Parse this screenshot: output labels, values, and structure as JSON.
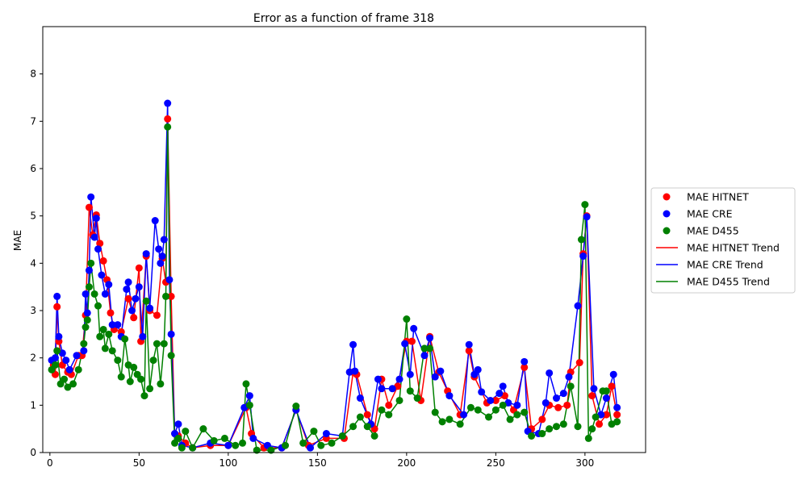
{
  "chart_data": {
    "type": "line",
    "title": "Error as a function of frame 318",
    "xlabel": "",
    "ylabel": "MAE",
    "xlim": [
      -4,
      334
    ],
    "ylim": [
      0,
      9
    ],
    "x_ticks": [
      0,
      50,
      100,
      150,
      200,
      250,
      300
    ],
    "y_ticks": [
      0,
      1,
      2,
      3,
      4,
      5,
      6,
      7,
      8
    ],
    "grid": false,
    "legend_placement": "outside-right",
    "legend": [
      {
        "label": "MAE HITNET",
        "kind": "marker",
        "color": "#ff0000"
      },
      {
        "label": "MAE CRE",
        "kind": "marker",
        "color": "#0000ff"
      },
      {
        "label": "MAE D455",
        "kind": "marker",
        "color": "#008000"
      },
      {
        "label": "MAE HITNET Trend",
        "kind": "line",
        "color": "#ff0000"
      },
      {
        "label": "MAE CRE Trend",
        "kind": "line",
        "color": "#0000ff"
      },
      {
        "label": "MAE D455 Trend",
        "kind": "line",
        "color": "#008000"
      }
    ],
    "series": [
      {
        "name": "MAE HITNET",
        "color": "#ff0000",
        "points": [
          [
            2,
            1.85
          ],
          [
            3,
            1.65
          ],
          [
            4,
            3.08
          ],
          [
            5,
            2.35
          ],
          [
            7,
            1.85
          ],
          [
            10,
            1.7
          ],
          [
            12,
            1.65
          ],
          [
            16,
            2.05
          ],
          [
            18,
            2.05
          ],
          [
            20,
            2.9
          ],
          [
            22,
            5.18
          ],
          [
            24,
            4.6
          ],
          [
            26,
            5.02
          ],
          [
            28,
            4.42
          ],
          [
            30,
            4.05
          ],
          [
            32,
            3.65
          ],
          [
            34,
            2.95
          ],
          [
            36,
            2.6
          ],
          [
            40,
            2.55
          ],
          [
            44,
            3.25
          ],
          [
            47,
            2.85
          ],
          [
            50,
            3.9
          ],
          [
            51,
            2.35
          ],
          [
            54,
            4.15
          ],
          [
            56,
            3.0
          ],
          [
            60,
            2.9
          ],
          [
            63,
            4.1
          ],
          [
            65,
            3.6
          ],
          [
            66,
            7.05
          ],
          [
            68,
            3.3
          ],
          [
            70,
            0.4
          ],
          [
            72,
            0.35
          ],
          [
            76,
            0.2
          ],
          [
            80,
            0.1
          ],
          [
            90,
            0.15
          ],
          [
            100,
            0.15
          ],
          [
            110,
            0.95
          ],
          [
            113,
            0.4
          ],
          [
            120,
            0.1
          ],
          [
            130,
            0.1
          ],
          [
            138,
            0.9
          ],
          [
            145,
            0.15
          ],
          [
            155,
            0.3
          ],
          [
            165,
            0.3
          ],
          [
            170,
            1.7
          ],
          [
            172,
            1.65
          ],
          [
            178,
            0.8
          ],
          [
            182,
            0.5
          ],
          [
            186,
            1.55
          ],
          [
            190,
            1.0
          ],
          [
            195,
            1.4
          ],
          [
            200,
            2.35
          ],
          [
            203,
            2.35
          ],
          [
            208,
            1.1
          ],
          [
            213,
            2.45
          ],
          [
            218,
            1.7
          ],
          [
            223,
            1.3
          ],
          [
            230,
            0.8
          ],
          [
            235,
            2.15
          ],
          [
            238,
            1.6
          ],
          [
            245,
            1.05
          ],
          [
            250,
            1.1
          ],
          [
            255,
            1.2
          ],
          [
            260,
            0.9
          ],
          [
            266,
            1.8
          ],
          [
            270,
            0.5
          ],
          [
            276,
            0.7
          ],
          [
            280,
            1.0
          ],
          [
            285,
            0.95
          ],
          [
            290,
            1.0
          ],
          [
            292,
            1.7
          ],
          [
            297,
            1.9
          ],
          [
            299,
            4.2
          ],
          [
            301,
            5.0
          ],
          [
            304,
            1.2
          ],
          [
            308,
            0.6
          ],
          [
            312,
            0.8
          ],
          [
            315,
            1.4
          ],
          [
            318,
            0.8
          ]
        ]
      },
      {
        "name": "MAE CRE",
        "color": "#0000ff",
        "points": [
          [
            1,
            1.95
          ],
          [
            3,
            2.0
          ],
          [
            4,
            3.3
          ],
          [
            5,
            2.45
          ],
          [
            7,
            2.1
          ],
          [
            9,
            1.95
          ],
          [
            11,
            1.75
          ],
          [
            15,
            2.05
          ],
          [
            19,
            2.15
          ],
          [
            20,
            3.35
          ],
          [
            21,
            2.95
          ],
          [
            22,
            3.85
          ],
          [
            23,
            5.4
          ],
          [
            25,
            4.55
          ],
          [
            26,
            4.95
          ],
          [
            27,
            4.3
          ],
          [
            29,
            3.75
          ],
          [
            31,
            3.35
          ],
          [
            33,
            3.55
          ],
          [
            35,
            2.7
          ],
          [
            38,
            2.7
          ],
          [
            40,
            2.45
          ],
          [
            43,
            3.45
          ],
          [
            44,
            3.6
          ],
          [
            46,
            3.0
          ],
          [
            48,
            3.25
          ],
          [
            50,
            3.5
          ],
          [
            52,
            2.45
          ],
          [
            54,
            4.2
          ],
          [
            56,
            3.05
          ],
          [
            59,
            4.9
          ],
          [
            61,
            4.3
          ],
          [
            62,
            4.0
          ],
          [
            63,
            4.15
          ],
          [
            64,
            4.5
          ],
          [
            66,
            7.38
          ],
          [
            67,
            3.65
          ],
          [
            68,
            2.5
          ],
          [
            70,
            0.4
          ],
          [
            72,
            0.6
          ],
          [
            74,
            0.15
          ],
          [
            80,
            0.1
          ],
          [
            90,
            0.2
          ],
          [
            100,
            0.15
          ],
          [
            109,
            0.95
          ],
          [
            112,
            1.2
          ],
          [
            114,
            0.3
          ],
          [
            122,
            0.15
          ],
          [
            130,
            0.1
          ],
          [
            138,
            0.9
          ],
          [
            146,
            0.1
          ],
          [
            155,
            0.4
          ],
          [
            164,
            0.35
          ],
          [
            168,
            1.7
          ],
          [
            170,
            2.28
          ],
          [
            171,
            1.72
          ],
          [
            174,
            1.15
          ],
          [
            180,
            0.6
          ],
          [
            184,
            1.55
          ],
          [
            186,
            1.35
          ],
          [
            192,
            1.35
          ],
          [
            196,
            1.55
          ],
          [
            199,
            2.3
          ],
          [
            202,
            1.65
          ],
          [
            204,
            2.62
          ],
          [
            210,
            2.05
          ],
          [
            213,
            2.42
          ],
          [
            216,
            1.6
          ],
          [
            219,
            1.72
          ],
          [
            224,
            1.2
          ],
          [
            232,
            0.8
          ],
          [
            235,
            2.28
          ],
          [
            238,
            1.65
          ],
          [
            240,
            1.75
          ],
          [
            242,
            1.28
          ],
          [
            247,
            1.1
          ],
          [
            252,
            1.25
          ],
          [
            254,
            1.4
          ],
          [
            257,
            1.05
          ],
          [
            262,
            1.0
          ],
          [
            266,
            1.92
          ],
          [
            268,
            0.45
          ],
          [
            274,
            0.4
          ],
          [
            278,
            1.05
          ],
          [
            280,
            1.68
          ],
          [
            284,
            1.15
          ],
          [
            288,
            1.25
          ],
          [
            291,
            1.6
          ],
          [
            296,
            3.1
          ],
          [
            299,
            4.15
          ],
          [
            301,
            4.98
          ],
          [
            305,
            1.35
          ],
          [
            309,
            0.8
          ],
          [
            312,
            1.15
          ],
          [
            316,
            1.65
          ],
          [
            318,
            0.95
          ]
        ]
      },
      {
        "name": "MAE D455",
        "color": "#008000",
        "points": [
          [
            1,
            1.75
          ],
          [
            3,
            1.85
          ],
          [
            4,
            2.15
          ],
          [
            6,
            1.45
          ],
          [
            8,
            1.55
          ],
          [
            10,
            1.38
          ],
          [
            13,
            1.45
          ],
          [
            16,
            1.75
          ],
          [
            19,
            2.3
          ],
          [
            20,
            2.65
          ],
          [
            21,
            2.8
          ],
          [
            22,
            3.5
          ],
          [
            23,
            4.0
          ],
          [
            25,
            3.35
          ],
          [
            27,
            3.1
          ],
          [
            28,
            2.45
          ],
          [
            30,
            2.6
          ],
          [
            31,
            2.2
          ],
          [
            33,
            2.5
          ],
          [
            35,
            2.15
          ],
          [
            38,
            1.95
          ],
          [
            40,
            1.6
          ],
          [
            42,
            2.4
          ],
          [
            44,
            1.85
          ],
          [
            45,
            1.5
          ],
          [
            47,
            1.8
          ],
          [
            49,
            1.65
          ],
          [
            51,
            1.55
          ],
          [
            53,
            1.2
          ],
          [
            54,
            3.2
          ],
          [
            56,
            1.35
          ],
          [
            58,
            1.95
          ],
          [
            60,
            2.3
          ],
          [
            62,
            1.45
          ],
          [
            64,
            2.3
          ],
          [
            65,
            3.3
          ],
          [
            66,
            6.88
          ],
          [
            68,
            2.05
          ],
          [
            70,
            0.2
          ],
          [
            72,
            0.3
          ],
          [
            74,
            0.1
          ],
          [
            76,
            0.45
          ],
          [
            80,
            0.1
          ],
          [
            86,
            0.5
          ],
          [
            92,
            0.25
          ],
          [
            98,
            0.3
          ],
          [
            104,
            0.15
          ],
          [
            108,
            0.2
          ],
          [
            110,
            1.45
          ],
          [
            112,
            1.0
          ],
          [
            116,
            0.05
          ],
          [
            124,
            0.05
          ],
          [
            132,
            0.15
          ],
          [
            138,
            0.98
          ],
          [
            142,
            0.2
          ],
          [
            148,
            0.45
          ],
          [
            152,
            0.15
          ],
          [
            158,
            0.2
          ],
          [
            164,
            0.35
          ],
          [
            170,
            0.55
          ],
          [
            174,
            0.75
          ],
          [
            178,
            0.55
          ],
          [
            182,
            0.35
          ],
          [
            186,
            0.9
          ],
          [
            190,
            0.8
          ],
          [
            196,
            1.1
          ],
          [
            200,
            2.82
          ],
          [
            202,
            1.3
          ],
          [
            206,
            1.15
          ],
          [
            210,
            2.2
          ],
          [
            213,
            2.2
          ],
          [
            216,
            0.85
          ],
          [
            220,
            0.65
          ],
          [
            224,
            0.7
          ],
          [
            230,
            0.6
          ],
          [
            236,
            0.95
          ],
          [
            240,
            0.9
          ],
          [
            246,
            0.75
          ],
          [
            250,
            0.9
          ],
          [
            254,
            1.0
          ],
          [
            258,
            0.7
          ],
          [
            262,
            0.8
          ],
          [
            266,
            0.85
          ],
          [
            270,
            0.35
          ],
          [
            276,
            0.4
          ],
          [
            280,
            0.5
          ],
          [
            284,
            0.55
          ],
          [
            288,
            0.6
          ],
          [
            292,
            1.4
          ],
          [
            296,
            0.55
          ],
          [
            298,
            4.5
          ],
          [
            300,
            5.24
          ],
          [
            302,
            0.3
          ],
          [
            304,
            0.5
          ],
          [
            306,
            0.75
          ],
          [
            310,
            1.3
          ],
          [
            312,
            1.3
          ],
          [
            315,
            0.6
          ],
          [
            318,
            0.65
          ]
        ]
      }
    ]
  }
}
